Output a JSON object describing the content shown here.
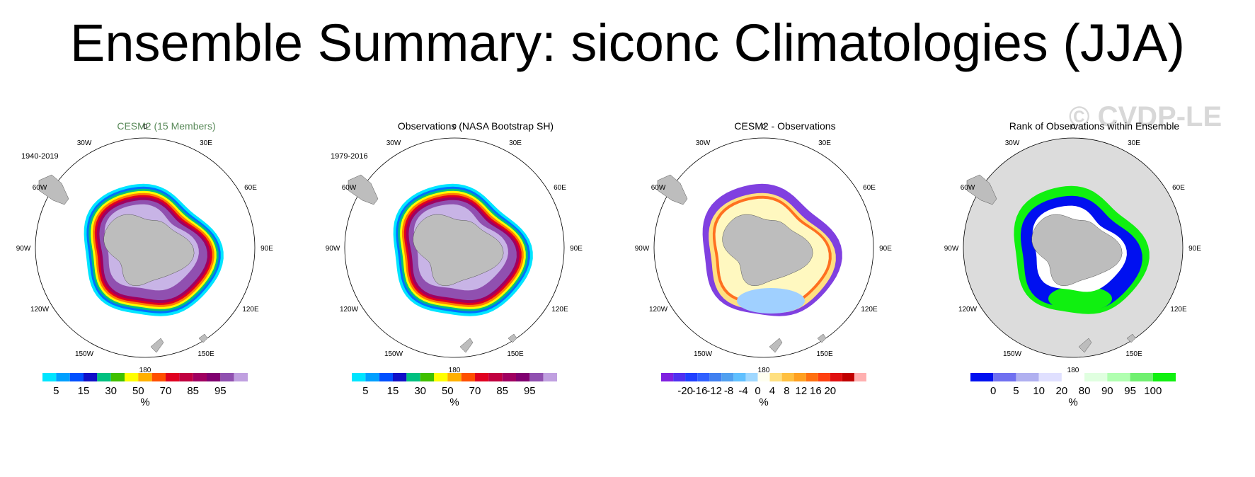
{
  "page": {
    "title": "Ensemble Summary: siconc Climatologies (JJA)",
    "watermark": "© CVDP-LE"
  },
  "lon_labels": [
    "0",
    "30E",
    "60E",
    "90E",
    "120E",
    "150E",
    "180",
    "150W",
    "120W",
    "90W",
    "60W",
    "30W"
  ],
  "panels": [
    {
      "title": "CESM2 (15 Members)",
      "title_color": "#5a8a5a",
      "period": "1940-2019",
      "map_style": "ice",
      "colorbar": {
        "colors": [
          "#00e5ff",
          "#00a0ff",
          "#0050ff",
          "#1010c8",
          "#00c080",
          "#40c000",
          "#ffff00",
          "#ffb000",
          "#ff5000",
          "#e00020",
          "#c00040",
          "#a00060",
          "#800070",
          "#9050b0",
          "#c0a0e0"
        ],
        "labels": [
          "5",
          "15",
          "30",
          "50",
          "70",
          "85",
          "95"
        ],
        "unit": "%"
      }
    },
    {
      "title": "Observations (NASA Bootstrap SH)",
      "title_color": "#000000",
      "period": "1979-2016",
      "map_style": "ice",
      "colorbar": {
        "colors": [
          "#00e5ff",
          "#00a0ff",
          "#0050ff",
          "#1010c8",
          "#00c080",
          "#40c000",
          "#ffff00",
          "#ffb000",
          "#ff5000",
          "#e00020",
          "#c00040",
          "#a00060",
          "#800070",
          "#9050b0",
          "#c0a0e0"
        ],
        "labels": [
          "5",
          "15",
          "30",
          "50",
          "70",
          "85",
          "95"
        ],
        "unit": "%"
      }
    },
    {
      "title": "CESM2 - Observations",
      "title_color": "#000000",
      "period": "",
      "map_style": "diff",
      "colorbar": {
        "colors": [
          "#8020e0",
          "#5030f0",
          "#2040ff",
          "#3060ff",
          "#4080f0",
          "#50a0f0",
          "#60c0ff",
          "#a0d8ff",
          "#fffff0",
          "#ffe080",
          "#ffc040",
          "#ffa020",
          "#ff7010",
          "#ff4010",
          "#e01010",
          "#c00000",
          "#ffb0b0"
        ],
        "labels": [
          "-20",
          "-16",
          "-12",
          "-8",
          "-4",
          "0",
          "4",
          "8",
          "12",
          "16",
          "20"
        ],
        "unit": "%"
      }
    },
    {
      "title": "Rank of Observations within Ensemble",
      "title_color": "#000000",
      "period": "",
      "map_style": "rank",
      "colorbar": {
        "colors": [
          "#0010f0",
          "#7070f0",
          "#b0b0f0",
          "#e0e0ff",
          "#ffffff",
          "#e0ffe0",
          "#b0ffb0",
          "#70f070",
          "#10f010"
        ],
        "labels": [
          "0",
          "5",
          "10",
          "20",
          "80",
          "90",
          "95",
          "100"
        ],
        "unit": "%"
      }
    }
  ]
}
